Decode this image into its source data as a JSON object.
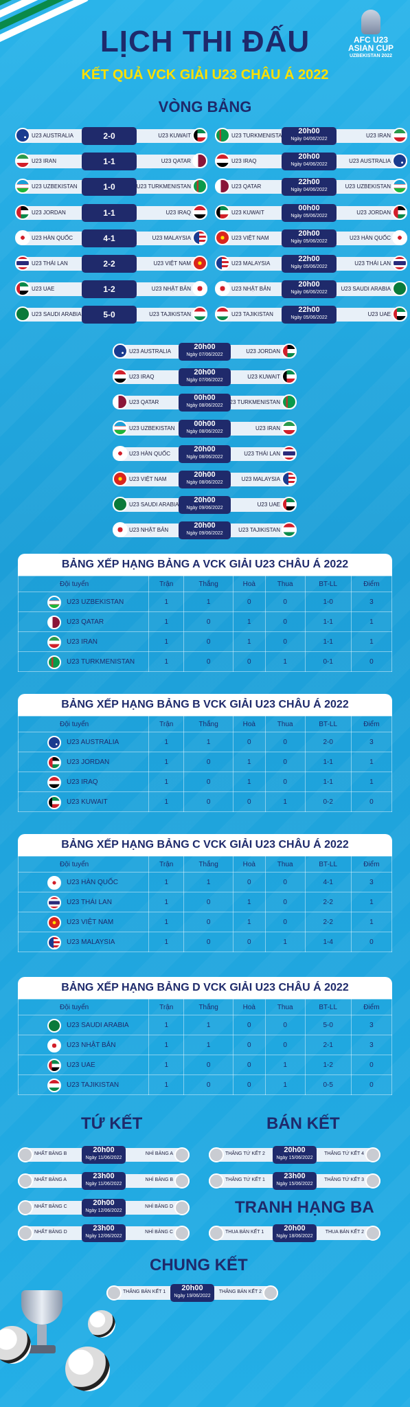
{
  "header": {
    "title": "LỊCH THI ĐẤU",
    "subtitle": "KẾT QUẢ VCK GIẢI U23 CHÂU Á 2022"
  },
  "logo": {
    "line1": "AFC U23",
    "line2": "ASIAN CUP",
    "line3": "UZBEKISTAN 2022"
  },
  "group_stage": {
    "heading": "VÒNG BẢNG",
    "left_results": [
      {
        "home": "U23 AUSTRALIA",
        "score": "2-0",
        "away": "U23 KUWAIT",
        "hf": "aus",
        "af": "kuw"
      },
      {
        "home": "U23 IRAN",
        "score": "1-1",
        "away": "U23 QATAR",
        "hf": "iran",
        "af": "qat"
      },
      {
        "home": "U23 UZBEKISTAN",
        "score": "1-0",
        "away": "U23 TURKMENISTAN",
        "hf": "uzb",
        "af": "tkm"
      },
      {
        "home": "U23 JORDAN",
        "score": "1-1",
        "away": "U23 IRAQ",
        "hf": "jor",
        "af": "irq"
      },
      {
        "home": "U23 HÀN QUỐC",
        "score": "4-1",
        "away": "U23 MALAYSIA",
        "hf": "kor",
        "af": "mas"
      },
      {
        "home": "U23 THÁI LAN",
        "score": "2-2",
        "away": "U23 VIỆT NAM",
        "hf": "tha",
        "af": "vie"
      },
      {
        "home": "U23 UAE",
        "score": "1-2",
        "away": "U23 NHẬT BẢN",
        "hf": "uae",
        "af": "jpn"
      },
      {
        "home": "U23 SAUDI ARABIA",
        "score": "5-0",
        "away": "U23 TAJIKISTAN",
        "hf": "ksa",
        "af": "tjk"
      }
    ],
    "right_fixtures": [
      {
        "home": "U23 TURKMENISTAN",
        "time": "20h00",
        "date": "Ngày 04/06/2022",
        "away": "U23 IRAN",
        "hf": "tkm",
        "af": "iran"
      },
      {
        "home": "U23 IRAQ",
        "time": "20h00",
        "date": "Ngày 04/06/2022",
        "away": "U23 AUSTRALIA",
        "hf": "irq",
        "af": "aus"
      },
      {
        "home": "U23 QATAR",
        "time": "22h00",
        "date": "Ngày 04/06/2022",
        "away": "U23 UZBEKISTAN",
        "hf": "qat",
        "af": "uzb"
      },
      {
        "home": "U23 KUWAIT",
        "time": "00h00",
        "date": "Ngày 05/06/2022",
        "away": "U23 JORDAN",
        "hf": "kuw",
        "af": "jor"
      },
      {
        "home": "U23 VIỆT NAM",
        "time": "20h00",
        "date": "Ngày 05/06/2022",
        "away": "U23 HÀN QUỐC",
        "hf": "vie",
        "af": "kor"
      },
      {
        "home": "U23 MALAYSIA",
        "time": "22h00",
        "date": "Ngày 05/06/2022",
        "away": "U23 THÁI LAN",
        "hf": "mas",
        "af": "tha"
      },
      {
        "home": "U23 NHẬT BẢN",
        "time": "20h00",
        "date": "Ngày 06/06/2022",
        "away": "U23 SAUDI ARABIA",
        "hf": "jpn",
        "af": "ksa"
      },
      {
        "home": "U23 TAJIKISTAN",
        "time": "22h00",
        "date": "Ngày 05/06/2022",
        "away": "U23 UAE",
        "hf": "tjk",
        "af": "uae"
      }
    ],
    "center_fixtures": [
      {
        "home": "U23 AUSTRALIA",
        "time": "20h00",
        "date": "Ngày 07/06/2022",
        "away": "U23 JORDAN",
        "hf": "aus",
        "af": "jor"
      },
      {
        "home": "U23 IRAQ",
        "time": "20h00",
        "date": "Ngày 07/06/2022",
        "away": "U23 KUWAIT",
        "hf": "irq",
        "af": "kuw"
      },
      {
        "home": "U23 QATAR",
        "time": "00h00",
        "date": "Ngày 08/06/2022",
        "away": "U23 TURKMENISTAN",
        "hf": "qat",
        "af": "tkm"
      },
      {
        "home": "U23 UZBEKISTAN",
        "time": "00h00",
        "date": "Ngày 08/06/2022",
        "away": "U23 IRAN",
        "hf": "uzb",
        "af": "iran"
      },
      {
        "home": "U23 HÀN QUỐC",
        "time": "20h00",
        "date": "Ngày 08/06/2022",
        "away": "U23 THÁI LAN",
        "hf": "kor",
        "af": "tha"
      },
      {
        "home": "U23 VIỆT NAM",
        "time": "20h00",
        "date": "Ngày 08/06/2022",
        "away": "U23 MALAYSIA",
        "hf": "vie",
        "af": "mas"
      },
      {
        "home": "U23 SAUDI ARABIA",
        "time": "20h00",
        "date": "Ngày 09/06/2022",
        "away": "U23 UAE",
        "hf": "ksa",
        "af": "uae"
      },
      {
        "home": "U23 NHẬT BẢN",
        "time": "20h00",
        "date": "Ngày 09/06/2022",
        "away": "U23 TAJIKISTAN",
        "hf": "jpn",
        "af": "tjk"
      }
    ]
  },
  "table_headers": [
    "Đội tuyển",
    "Trận",
    "Thắng",
    "Hoà",
    "Thua",
    "BT-LL",
    "Điểm"
  ],
  "standings": [
    {
      "title": "BẢNG XẾP HẠNG BẢNG A VCK GIẢI U23 CHÂU Á 2022",
      "rows": [
        {
          "team": "U23 UZBEKISTAN",
          "f": "uzb",
          "p": "1",
          "w": "1",
          "d": "0",
          "l": "0",
          "gd": "1-0",
          "pts": "3"
        },
        {
          "team": "U23 QATAR",
          "f": "qat",
          "p": "1",
          "w": "0",
          "d": "1",
          "l": "0",
          "gd": "1-1",
          "pts": "1"
        },
        {
          "team": "U23 IRAN",
          "f": "iran",
          "p": "1",
          "w": "0",
          "d": "1",
          "l": "0",
          "gd": "1-1",
          "pts": "1"
        },
        {
          "team": "U23 TURKMENISTAN",
          "f": "tkm",
          "p": "1",
          "w": "0",
          "d": "0",
          "l": "1",
          "gd": "0-1",
          "pts": "0"
        }
      ]
    },
    {
      "title": "BẢNG XẾP HẠNG BẢNG B VCK GIẢI U23 CHÂU Á 2022",
      "rows": [
        {
          "team": "U23 AUSTRALIA",
          "f": "aus",
          "p": "1",
          "w": "1",
          "d": "0",
          "l": "0",
          "gd": "2-0",
          "pts": "3"
        },
        {
          "team": "U23 JORDAN",
          "f": "jor",
          "p": "1",
          "w": "0",
          "d": "1",
          "l": "0",
          "gd": "1-1",
          "pts": "1"
        },
        {
          "team": "U23 IRAQ",
          "f": "irq",
          "p": "1",
          "w": "0",
          "d": "1",
          "l": "0",
          "gd": "1-1",
          "pts": "1"
        },
        {
          "team": "U23 KUWAIT",
          "f": "kuw",
          "p": "1",
          "w": "0",
          "d": "0",
          "l": "1",
          "gd": "0-2",
          "pts": "0"
        }
      ]
    },
    {
      "title": "BẢNG XẾP HẠNG BẢNG C VCK GIẢI U23 CHÂU Á 2022",
      "rows": [
        {
          "team": "U23 HÀN QUỐC",
          "f": "kor",
          "p": "1",
          "w": "1",
          "d": "0",
          "l": "0",
          "gd": "4-1",
          "pts": "3"
        },
        {
          "team": "U23 THÁI LAN",
          "f": "tha",
          "p": "1",
          "w": "0",
          "d": "1",
          "l": "0",
          "gd": "2-2",
          "pts": "1"
        },
        {
          "team": "U23 VIỆT NAM",
          "f": "vie",
          "p": "1",
          "w": "0",
          "d": "1",
          "l": "0",
          "gd": "2-2",
          "pts": "1"
        },
        {
          "team": "U23 MALAYSIA",
          "f": "mas",
          "p": "1",
          "w": "0",
          "d": "0",
          "l": "1",
          "gd": "1-4",
          "pts": "0"
        }
      ]
    },
    {
      "title": "BẢNG XẾP HẠNG BẢNG D VCK GIẢI U23 CHÂU Á 2022",
      "rows": [
        {
          "team": "U23 SAUDI ARABIA",
          "f": "ksa",
          "p": "1",
          "w": "1",
          "d": "0",
          "l": "0",
          "gd": "5-0",
          "pts": "3"
        },
        {
          "team": "U23 NHẬT BẢN",
          "f": "jpn",
          "p": "1",
          "w": "1",
          "d": "0",
          "l": "0",
          "gd": "2-1",
          "pts": "3"
        },
        {
          "team": "U23 UAE",
          "f": "uae",
          "p": "1",
          "w": "0",
          "d": "0",
          "l": "1",
          "gd": "1-2",
          "pts": "0"
        },
        {
          "team": "U23 TAJIKISTAN",
          "f": "tjk",
          "p": "1",
          "w": "0",
          "d": "0",
          "l": "1",
          "gd": "0-5",
          "pts": "0"
        }
      ]
    }
  ],
  "knockout": {
    "qf_heading": "TỨ KẾT",
    "sf_heading": "BÁN KẾT",
    "third_heading": "TRANH HẠNG BA",
    "final_heading": "CHUNG KẾT",
    "qf": [
      {
        "home": "NHẤT BẢNG B",
        "time": "20h00",
        "date": "Ngày 11/06/2022",
        "away": "NHÌ BẢNG A"
      },
      {
        "home": "NHẤT BẢNG A",
        "time": "23h00",
        "date": "Ngày 11/06/2022",
        "away": "NHÌ BẢNG B"
      },
      {
        "home": "NHẤT BẢNG C",
        "time": "20h00",
        "date": "Ngày 12/06/2022",
        "away": "NHÌ BẢNG D"
      },
      {
        "home": "NHẤT BẢNG D",
        "time": "23h00",
        "date": "Ngày 12/06/2022",
        "away": "NHÌ BẢNG C"
      }
    ],
    "sf": [
      {
        "home": "THẮNG TỨ KẾT 2",
        "time": "20h00",
        "date": "Ngày 15/06/2022",
        "away": "THẮNG TỨ KẾT 4"
      },
      {
        "home": "THẮNG TỨ KẾT 1",
        "time": "23h00",
        "date": "Ngày 15/06/2022",
        "away": "THẮNG TỨ KẾT 3"
      }
    ],
    "third": {
      "home": "THUA BÁN KẾT 1",
      "time": "20h00",
      "date": "Ngày 18/06/2022",
      "away": "THUA BÁN KẾT 2"
    },
    "final": {
      "home": "THẮNG BÁN KẾT 1",
      "time": "20h00",
      "date": "Ngày 19/06/2022",
      "away": "THẮNG BÁN KẾT 2"
    }
  }
}
